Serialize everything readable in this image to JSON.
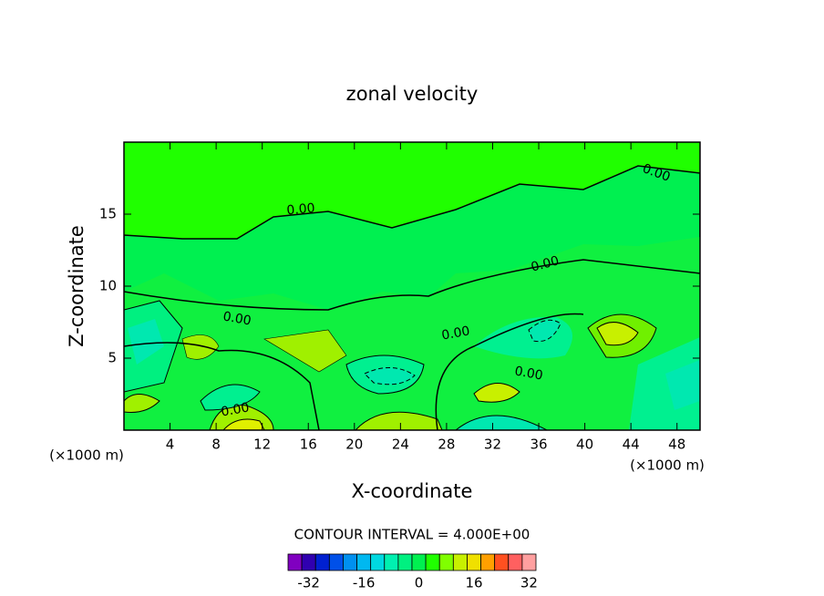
{
  "chart_data": {
    "type": "contour",
    "title": "zonal velocity",
    "x_label": "X-coordinate",
    "y_label": "Z-coordinate",
    "x_unit": "(×1000 m)",
    "y_unit": "(×1000 m)",
    "xlim": [
      0,
      50
    ],
    "ylim": [
      0,
      20
    ],
    "xticks": [
      4,
      8,
      12,
      16,
      20,
      24,
      28,
      32,
      36,
      40,
      44,
      48
    ],
    "yticks": [
      5,
      10,
      15
    ],
    "contour_labels": [
      "0.00",
      "0.00",
      "0.00",
      "0.00",
      "0.00",
      "0.00",
      "0.00"
    ],
    "contour_interval_text": "CONTOUR INTERVAL = 4.000E+00",
    "colorbar": {
      "lim": [
        -36,
        36
      ],
      "ticks": [
        -32,
        -16,
        0,
        16,
        32
      ],
      "colors": [
        "#8000c0",
        "#3000b0",
        "#0020d0",
        "#0050e8",
        "#0090f0",
        "#00b8f0",
        "#00d8e0",
        "#00f0b0",
        "#00f080",
        "#00f050",
        "#20ff00",
        "#80ff00",
        "#c8f000",
        "#f0e000",
        "#ffa000",
        "#ff5020",
        "#ff6060",
        "#ffa0a0"
      ]
    }
  }
}
